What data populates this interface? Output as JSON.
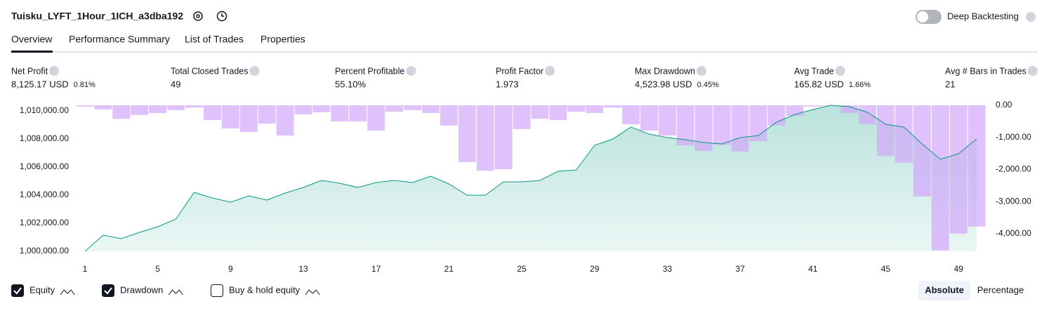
{
  "header": {
    "title": "Tuisku_LYFT_1Hour_1ICH_a3dba192",
    "deep_backtesting": "Deep Backtesting"
  },
  "tabs": [
    "Overview",
    "Performance Summary",
    "List of Trades",
    "Properties"
  ],
  "stats": [
    {
      "label": "Net Profit",
      "value": "8,125.17 USD",
      "percent": "0.81%",
      "color": "#089981"
    },
    {
      "label": "Total Closed Trades",
      "value": "49",
      "color": "#131722"
    },
    {
      "label": "Percent Profitable",
      "value": "55.10%",
      "color": "#089981"
    },
    {
      "label": "Profit Factor",
      "value": "1.973",
      "color": "#089981"
    },
    {
      "label": "Max Drawdown",
      "value": "4,523.98 USD",
      "percent": "0.45%",
      "color": "#f23645"
    },
    {
      "label": "Avg Trade",
      "value": "165.82 USD",
      "percent": "1.66%",
      "color": "#089981"
    },
    {
      "label": "Avg # Bars in Trades",
      "value": "21",
      "color": "#131722"
    }
  ],
  "chart_data": {
    "type": "equity-drawdown",
    "x": [
      1,
      2,
      3,
      4,
      5,
      6,
      7,
      8,
      9,
      10,
      11,
      12,
      13,
      14,
      15,
      16,
      17,
      18,
      19,
      20,
      21,
      22,
      23,
      24,
      25,
      26,
      27,
      28,
      29,
      30,
      31,
      32,
      33,
      34,
      35,
      36,
      37,
      38,
      39,
      40,
      41,
      42,
      43,
      44,
      45,
      46,
      47,
      48,
      49,
      50
    ],
    "xlim": [
      0.5,
      50.5
    ],
    "xticks": [
      1,
      5,
      9,
      13,
      17,
      21,
      25,
      29,
      33,
      37,
      41,
      45,
      49
    ],
    "ylim": [
      1000000,
      1010400
    ],
    "yticks": [
      {
        "value": 1000000,
        "label": "1,000,000.00"
      },
      {
        "value": 1002000,
        "label": "1,002,000.00"
      },
      {
        "value": 1004000,
        "label": "1,004,000.00"
      },
      {
        "value": 1006000,
        "label": "1,006,000.00"
      },
      {
        "value": 1008000,
        "label": "1,008,000.00"
      },
      {
        "value": 1010000,
        "label": "1,010,000.00"
      }
    ],
    "y2lim": [
      -4550,
      0
    ],
    "y2ticks": [
      {
        "value": 0,
        "label": "0.00"
      },
      {
        "value": -1000,
        "label": "-1,000.00"
      },
      {
        "value": -2000,
        "label": "-2,000.00"
      },
      {
        "value": -3000,
        "label": "-3,000.00"
      },
      {
        "value": -4000,
        "label": "-4,000.00"
      }
    ],
    "series": [
      {
        "name": "Equity",
        "color": "#089981",
        "checked": true,
        "values": [
          1000000,
          1001150,
          1000900,
          1001350,
          1001750,
          1002300,
          1004200,
          1003800,
          1003500,
          1003950,
          1003650,
          1004150,
          1004550,
          1005050,
          1004850,
          1004550,
          1004900,
          1005050,
          1004900,
          1005350,
          1004800,
          1004000,
          1004000,
          1004950,
          1004950,
          1005050,
          1005700,
          1005800,
          1007550,
          1008000,
          1008850,
          1008350,
          1008100,
          1007950,
          1007750,
          1007650,
          1008100,
          1008250,
          1009200,
          1009750,
          1010100,
          1010400,
          1010300,
          1009900,
          1009050,
          1008850,
          1007650,
          1006550,
          1006950,
          1008000
        ]
      },
      {
        "name": "Drawdown",
        "color": "#d1a6fb",
        "axis": "y2",
        "checked": true,
        "values": [
          -40,
          -130,
          -420,
          -300,
          -240,
          -150,
          -70,
          -460,
          -720,
          -830,
          -570,
          -940,
          -280,
          -220,
          -500,
          -500,
          -790,
          -200,
          -150,
          -240,
          -630,
          -1770,
          -2040,
          -1990,
          -740,
          -420,
          -460,
          -200,
          -240,
          -70,
          -590,
          -790,
          -940,
          -1250,
          -1420,
          -1230,
          -1440,
          -1120,
          -630,
          -330,
          -40,
          -20,
          -240,
          -590,
          -1580,
          -1790,
          -2840,
          -4520,
          -4000,
          -3780
        ]
      }
    ],
    "buy_hold": {
      "name": "Buy & hold equity",
      "checked": false
    }
  },
  "view_modes": [
    {
      "label": "Absolute",
      "active": true
    },
    {
      "label": "Percentage",
      "active": false
    }
  ]
}
